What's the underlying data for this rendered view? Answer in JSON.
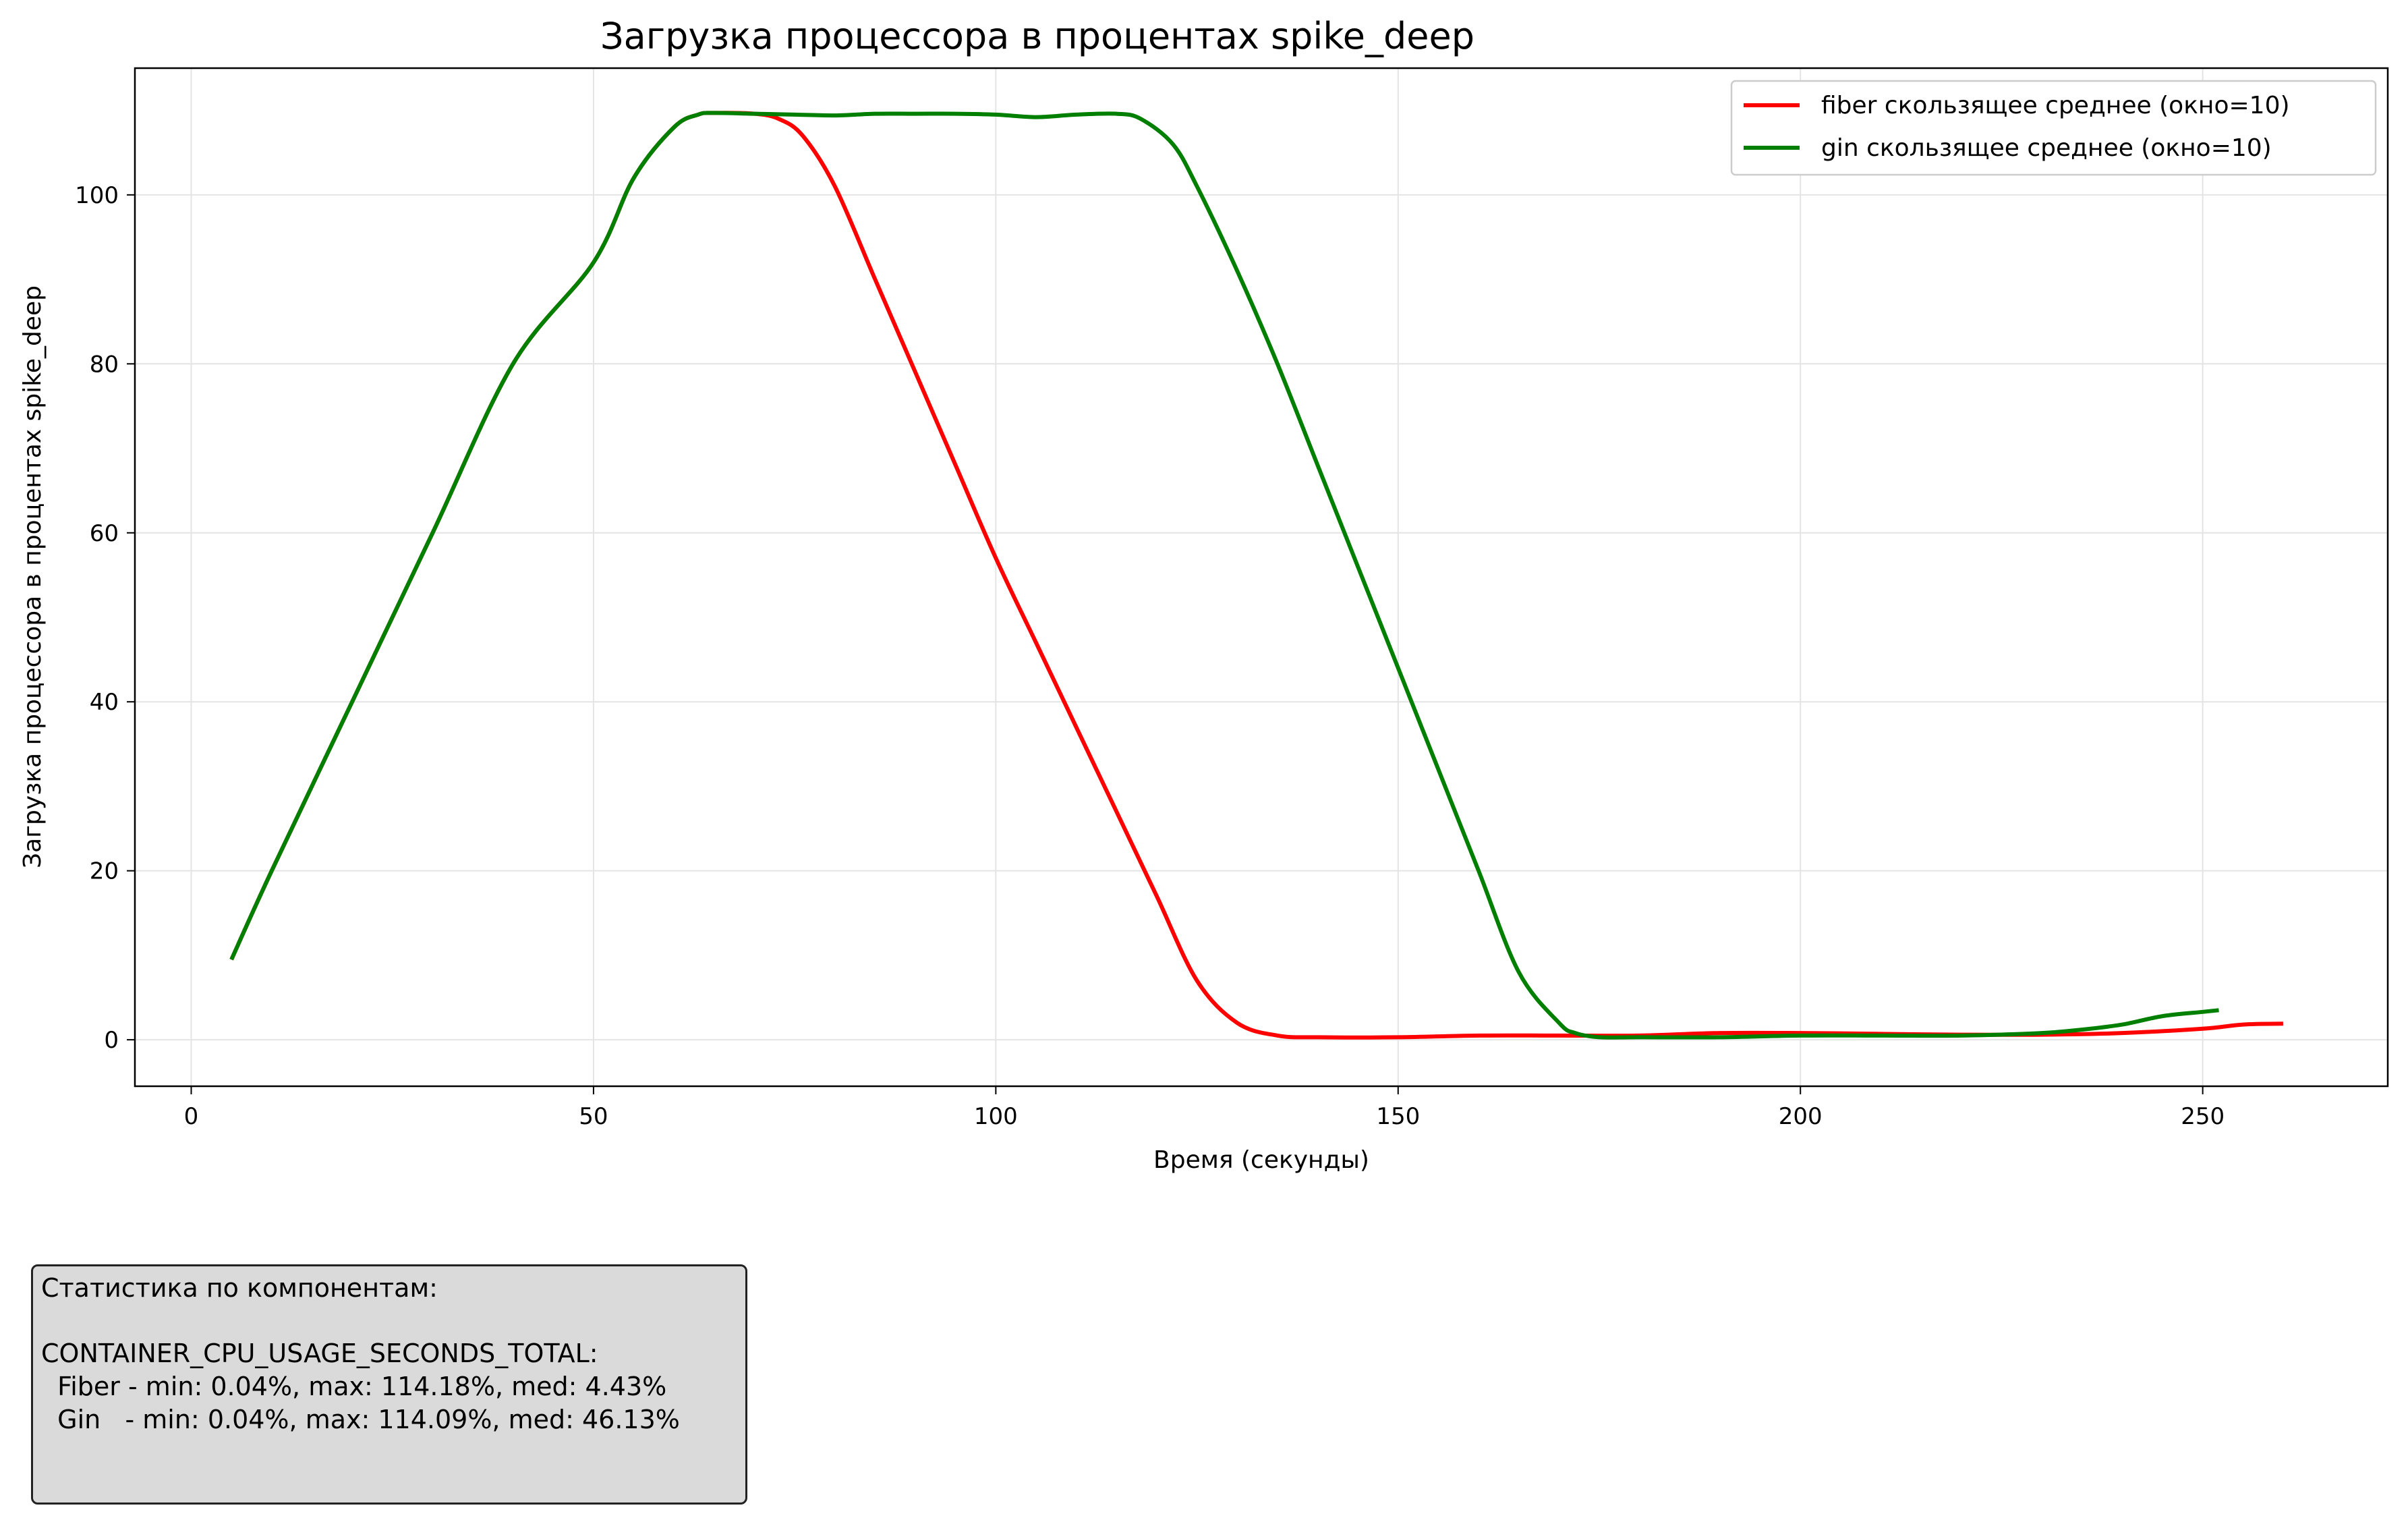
{
  "chart_data": {
    "type": "line",
    "title": "Загрузка процессора в процентах spike_deep",
    "xlabel": "Время (секунды)",
    "ylabel": "Загрузка процессора в процентах spike_deep",
    "xlim": [
      -7,
      273
    ],
    "ylim": [
      -5.5,
      115
    ],
    "xticks": [
      0,
      50,
      100,
      150,
      200,
      250
    ],
    "yticks": [
      0,
      20,
      40,
      60,
      80,
      100
    ],
    "grid": true,
    "legend_position": "top-right",
    "series": [
      {
        "name": "fiber скользящее среднее (окно=10)",
        "color": "#ff0000",
        "points": [
          [
            5,
            9.5
          ],
          [
            10,
            20
          ],
          [
            20,
            40
          ],
          [
            30,
            60
          ],
          [
            40,
            80
          ],
          [
            50,
            92
          ],
          [
            55,
            102
          ],
          [
            60,
            108
          ],
          [
            63,
            109.5
          ],
          [
            65,
            109.7
          ],
          [
            70,
            109.6
          ],
          [
            73,
            109
          ],
          [
            76,
            107
          ],
          [
            80,
            101
          ],
          [
            85,
            90
          ],
          [
            90,
            79
          ],
          [
            95,
            68
          ],
          [
            100,
            57
          ],
          [
            105,
            47
          ],
          [
            110,
            37
          ],
          [
            115,
            27
          ],
          [
            120,
            17
          ],
          [
            125,
            7
          ],
          [
            130,
            2
          ],
          [
            135,
            0.5
          ],
          [
            140,
            0.3
          ],
          [
            150,
            0.3
          ],
          [
            160,
            0.5
          ],
          [
            170,
            0.5
          ],
          [
            180,
            0.5
          ],
          [
            190,
            0.8
          ],
          [
            200,
            0.8
          ],
          [
            210,
            0.7
          ],
          [
            220,
            0.6
          ],
          [
            230,
            0.6
          ],
          [
            240,
            0.8
          ],
          [
            250,
            1.3
          ],
          [
            255,
            1.8
          ],
          [
            260,
            1.9
          ]
        ]
      },
      {
        "name": "gin скользящее среднее (окно=10)",
        "color": "#007f00",
        "points": [
          [
            5,
            9.5
          ],
          [
            10,
            20
          ],
          [
            20,
            40
          ],
          [
            30,
            60
          ],
          [
            40,
            80
          ],
          [
            50,
            92
          ],
          [
            55,
            102
          ],
          [
            60,
            108
          ],
          [
            63,
            109.5
          ],
          [
            65,
            109.7
          ],
          [
            70,
            109.6
          ],
          [
            75,
            109.5
          ],
          [
            80,
            109.4
          ],
          [
            85,
            109.6
          ],
          [
            90,
            109.6
          ],
          [
            95,
            109.6
          ],
          [
            100,
            109.5
          ],
          [
            105,
            109.2
          ],
          [
            110,
            109.5
          ],
          [
            115,
            109.6
          ],
          [
            118,
            109
          ],
          [
            122,
            106
          ],
          [
            125,
            101
          ],
          [
            130,
            91
          ],
          [
            135,
            80
          ],
          [
            140,
            68
          ],
          [
            145,
            56
          ],
          [
            150,
            44
          ],
          [
            155,
            32
          ],
          [
            160,
            20
          ],
          [
            165,
            8
          ],
          [
            170,
            2
          ],
          [
            172,
            0.8
          ],
          [
            175,
            0.3
          ],
          [
            180,
            0.3
          ],
          [
            190,
            0.3
          ],
          [
            200,
            0.5
          ],
          [
            210,
            0.5
          ],
          [
            220,
            0.5
          ],
          [
            230,
            0.8
          ],
          [
            235,
            1.2
          ],
          [
            240,
            1.8
          ],
          [
            245,
            2.8
          ],
          [
            250,
            3.3
          ],
          [
            252,
            3.5
          ]
        ]
      }
    ]
  },
  "stats": {
    "heading": "Статистика по компонентам:",
    "metric": "CONTAINER_CPU_USAGE_SECONDS_TOTAL:",
    "fiber_line": "  Fiber - min: 0.04%, max: 114.18%, med: 4.43%",
    "gin_line": "  Gin   - min: 0.04%, max: 114.09%, med: 46.13%"
  }
}
